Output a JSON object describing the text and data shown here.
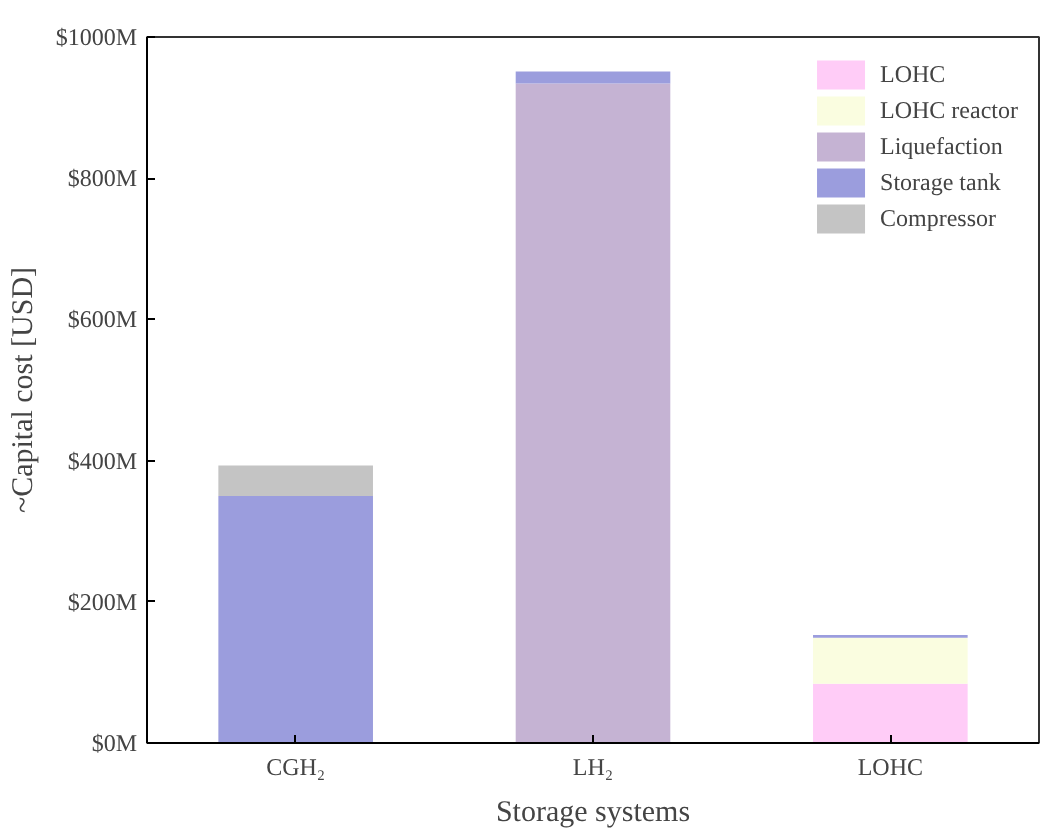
{
  "chart_data": {
    "type": "bar",
    "stacked": true,
    "xlabel": "Storage systems",
    "ylabel": "~Capital cost [USD]",
    "categories": [
      "CGH₂",
      "LH₂",
      "LOHC"
    ],
    "series": [
      {
        "name": "LOHC",
        "color": "#ffccf7",
        "values": [
          0,
          0,
          84
        ]
      },
      {
        "name": "LOHC reactor",
        "color": "#fafde0",
        "values": [
          0,
          0,
          65
        ]
      },
      {
        "name": "Liquefaction",
        "color": "#c5b3d3",
        "values": [
          0,
          934,
          0
        ]
      },
      {
        "name": "Storage tank",
        "color": "#9b9ddd",
        "values": [
          350,
          17,
          4
        ]
      },
      {
        "name": "Compressor",
        "color": "#c4c4c4",
        "values": [
          43,
          0,
          0
        ]
      }
    ],
    "ylim": [
      0,
      1000
    ],
    "yticks": [
      {
        "value": 0,
        "label": "$0M"
      },
      {
        "value": 200,
        "label": "$200M"
      },
      {
        "value": 400,
        "label": "$400M"
      },
      {
        "value": 600,
        "label": "$600M"
      },
      {
        "value": 800,
        "label": "$800M"
      },
      {
        "value": 1000,
        "label": "$1000M"
      }
    ],
    "legend": "top right",
    "grid": false
  }
}
